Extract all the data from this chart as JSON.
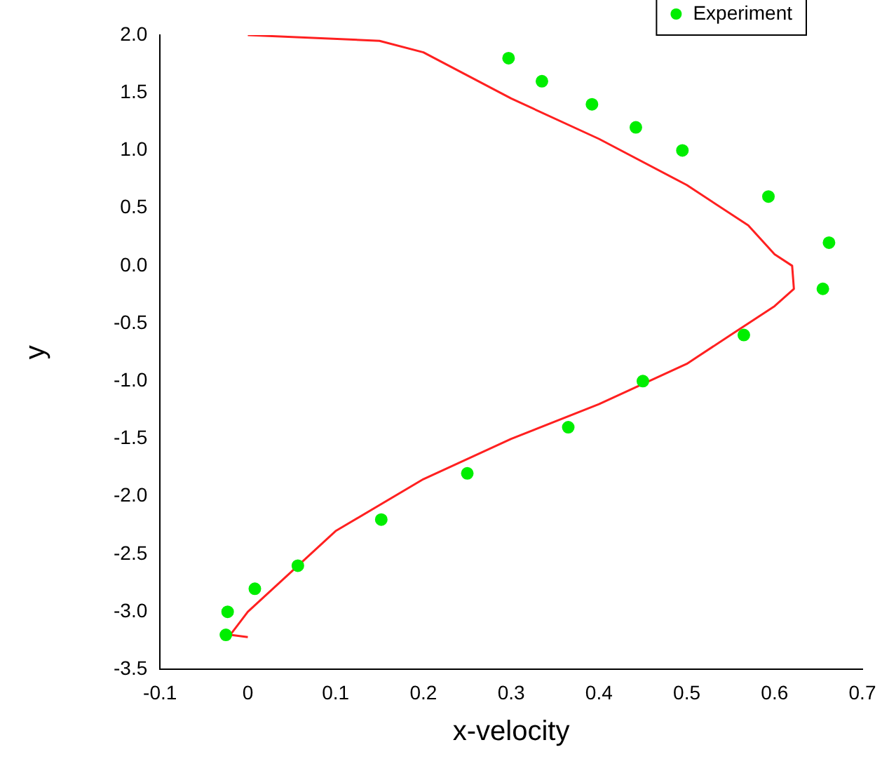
{
  "chart_data": {
    "type": "scatter",
    "xlabel": "x-velocity",
    "ylabel": "y",
    "xlim": [
      -0.1,
      0.7
    ],
    "xticks": [
      -0.1,
      0,
      0.1,
      0.2,
      0.3,
      0.4,
      0.5,
      0.6,
      0.7
    ],
    "ylim": [
      -3.5,
      2.0
    ],
    "yticks": [
      -3.5,
      {
        "value": -3,
        "label": "-3.0"
      },
      -2.5,
      {
        "value": -2,
        "label": "-2.0"
      },
      -1.5,
      {
        "value": -1,
        "label": "-1.0"
      },
      -0.5,
      {
        "value": 0,
        "label": "0.0"
      },
      0.5,
      {
        "value": 1,
        "label": "1.0"
      },
      1.5,
      {
        "value": 2,
        "label": "2.0"
      }
    ],
    "grid": false,
    "legend": "top right",
    "series": [
      {
        "name": "Experiment",
        "marker": "circle",
        "color": "#00ee00",
        "x": [
          0.297,
          0.335,
          0.392,
          0.442,
          0.495,
          0.593,
          0.662,
          0.655,
          0.565,
          0.45,
          0.365,
          0.25,
          0.152,
          0.057,
          0.008,
          -0.023,
          -0.025
        ],
        "values": [
          1.8,
          1.6,
          1.4,
          1.2,
          1.0,
          0.6,
          0.2,
          -0.2,
          -0.6,
          -1.0,
          -1.4,
          -1.8,
          -2.2,
          -2.6,
          -2.8,
          -3.0,
          -3.2
        ]
      },
      {
        "type": "line",
        "marker": "none",
        "line_style": "solid",
        "color": "#ff2020",
        "x": [
          0,
          0.15,
          0.2,
          0.3,
          0.4,
          0.5,
          0.57,
          0.6,
          0.62,
          0.622,
          0.6,
          0.55,
          0.5,
          0.4,
          0.3,
          0.2,
          0.1,
          0.05,
          0.0,
          -0.02,
          0.0
        ],
        "values": [
          2.0,
          1.95,
          1.85,
          1.45,
          1.1,
          0.7,
          0.35,
          0.1,
          0.0,
          -0.2,
          -0.35,
          -0.6,
          -0.85,
          -1.2,
          -1.5,
          -1.85,
          -2.3,
          -2.65,
          -3.0,
          -3.2,
          -3.22
        ]
      }
    ]
  }
}
